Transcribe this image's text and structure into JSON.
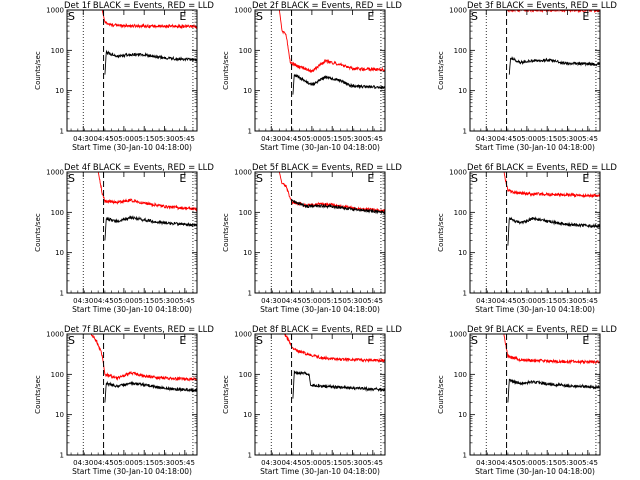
{
  "figure": {
    "x_tick_labels": [
      "04:30",
      "04:45",
      "05:00",
      "05:15",
      "05:30",
      "05:45"
    ],
    "y_tick_labels": [
      "1",
      "10",
      "100",
      "1000"
    ],
    "xlabel": "Start Time (30-Jan-10 04:18:00)",
    "ylabel": "Counts/sec",
    "start_marker": "S",
    "end_marker": "E"
  },
  "chart_data": [
    {
      "type": "line",
      "title": "Det 1f BLACK = Events, RED = LLD",
      "xlabel": "Start Time (30-Jan-10 04:18:00)",
      "ylabel": "Counts/sec",
      "xlim": [
        "04:18",
        "05:54"
      ],
      "ylim": [
        1,
        1000
      ],
      "y_scale": "log",
      "x_ticks": [
        "04:30",
        "04:45",
        "05:00",
        "05:15",
        "05:30",
        "05:45"
      ],
      "dotted_vlines": [
        "04:30",
        "05:51"
      ],
      "dashed_vline": "04:45",
      "markers": {
        "S": "04:18",
        "E": "05:41"
      },
      "series": [
        {
          "color": "#ff0000",
          "points": [
            [
              "04:44",
              1000
            ],
            [
              "04:46",
              500
            ],
            [
              "04:50",
              430
            ],
            [
              "05:00",
              410
            ],
            [
              "05:15",
              400
            ],
            [
              "05:30",
              395
            ],
            [
              "05:54",
              390
            ]
          ]
        },
        {
          "color": "#000000",
          "points": [
            [
              "04:46",
              25
            ],
            [
              "04:47",
              90
            ],
            [
              "04:55",
              70
            ],
            [
              "05:05",
              80
            ],
            [
              "05:15",
              78
            ],
            [
              "05:30",
              65
            ],
            [
              "05:54",
              58
            ]
          ]
        }
      ]
    },
    {
      "type": "line",
      "title": "Det 2f BLACK = Events, RED = LLD",
      "xlabel": "Start Time (30-Jan-10 04:18:00)",
      "ylabel": "Counts/sec",
      "xlim": [
        "04:18",
        "05:54"
      ],
      "ylim": [
        1,
        1000
      ],
      "y_scale": "log",
      "x_ticks": [
        "04:30",
        "04:45",
        "05:00",
        "05:15",
        "05:30",
        "05:45"
      ],
      "dotted_vlines": [
        "04:30",
        "05:51"
      ],
      "dashed_vline": "04:45",
      "markers": {
        "S": "04:18",
        "E": "05:41"
      },
      "series": [
        {
          "color": "#ff0000",
          "points": [
            [
              "04:36",
              1000
            ],
            [
              "04:38",
              300
            ],
            [
              "04:41",
              250
            ],
            [
              "04:44",
              50
            ],
            [
              "04:50",
              40
            ],
            [
              "05:00",
              30
            ],
            [
              "05:10",
              55
            ],
            [
              "05:20",
              45
            ],
            [
              "05:30",
              35
            ],
            [
              "05:54",
              33
            ]
          ]
        },
        {
          "color": "#000000",
          "points": [
            [
              "04:46",
              8
            ],
            [
              "04:47",
              25
            ],
            [
              "04:52",
              20
            ],
            [
              "05:00",
              14
            ],
            [
              "05:10",
              22
            ],
            [
              "05:20",
              18
            ],
            [
              "05:30",
              13
            ],
            [
              "05:54",
              12
            ]
          ]
        }
      ]
    },
    {
      "type": "line",
      "title": "Det 3f BLACK = Events, RED = LLD",
      "xlabel": "Start Time (30-Jan-10 04:18:00)",
      "ylabel": "Counts/sec",
      "xlim": [
        "04:18",
        "05:54"
      ],
      "ylim": [
        1,
        1000
      ],
      "y_scale": "log",
      "x_ticks": [
        "04:30",
        "04:45",
        "05:00",
        "05:15",
        "05:30",
        "05:45"
      ],
      "dotted_vlines": [
        "04:30",
        "05:51"
      ],
      "dashed_vline": "04:45",
      "markers": {
        "S": "04:18",
        "E": "05:41"
      },
      "series": [
        {
          "color": "#ff0000",
          "points": [
            [
              "04:45",
              1000
            ],
            [
              "05:54",
              980
            ]
          ]
        },
        {
          "color": "#000000",
          "points": [
            [
              "04:47",
              25
            ],
            [
              "04:48",
              65
            ],
            [
              "04:55",
              50
            ],
            [
              "05:05",
              55
            ],
            [
              "05:15",
              58
            ],
            [
              "05:30",
              48
            ],
            [
              "05:54",
              45
            ]
          ]
        }
      ]
    },
    {
      "type": "line",
      "title": "Det 4f BLACK = Events, RED = LLD",
      "xlabel": "Start Time (30-Jan-10 04:18:00)",
      "ylabel": "Counts/sec",
      "xlim": [
        "04:18",
        "05:54"
      ],
      "ylim": [
        1,
        1000
      ],
      "y_scale": "log",
      "x_ticks": [
        "04:30",
        "04:45",
        "05:00",
        "05:15",
        "05:30",
        "05:45"
      ],
      "dotted_vlines": [
        "04:30",
        "05:51"
      ],
      "dashed_vline": "04:45",
      "markers": {
        "S": "04:18",
        "E": "05:41"
      },
      "series": [
        {
          "color": "#ff0000",
          "points": [
            [
              "04:41",
              1000
            ],
            [
              "04:44",
              300
            ],
            [
              "04:46",
              190
            ],
            [
              "04:55",
              175
            ],
            [
              "05:05",
              200
            ],
            [
              "05:15",
              170
            ],
            [
              "05:30",
              140
            ],
            [
              "05:54",
              120
            ]
          ]
        },
        {
          "color": "#000000",
          "points": [
            [
              "04:46",
              20
            ],
            [
              "04:47",
              70
            ],
            [
              "04:55",
              60
            ],
            [
              "05:05",
              75
            ],
            [
              "05:15",
              65
            ],
            [
              "05:30",
              55
            ],
            [
              "05:54",
              48
            ]
          ]
        }
      ]
    },
    {
      "type": "line",
      "title": "Det 5f BLACK = Events, RED = LLD",
      "xlabel": "Start Time (30-Jan-10 04:18:00)",
      "ylabel": "Counts/sec",
      "xlim": [
        "04:18",
        "05:54"
      ],
      "ylim": [
        1,
        1000
      ],
      "y_scale": "log",
      "x_ticks": [
        "04:30",
        "04:45",
        "05:00",
        "05:15",
        "05:30",
        "05:45"
      ],
      "dotted_vlines": [
        "04:30",
        "05:51"
      ],
      "dashed_vline": "04:45",
      "markers": {
        "S": "04:18",
        "E": "05:41"
      },
      "series": [
        {
          "color": "#ff0000",
          "points": [
            [
              "04:36",
              1000
            ],
            [
              "04:38",
              500
            ],
            [
              "04:41",
              450
            ],
            [
              "04:45",
              180
            ],
            [
              "04:55",
              150
            ],
            [
              "05:05",
              160
            ],
            [
              "05:15",
              155
            ],
            [
              "05:30",
              125
            ],
            [
              "05:54",
              110
            ]
          ]
        },
        {
          "color": "#000000",
          "points": [
            [
              "04:45",
              200
            ],
            [
              "04:55",
              140
            ],
            [
              "05:05",
              145
            ],
            [
              "05:15",
              140
            ],
            [
              "05:30",
              120
            ],
            [
              "05:54",
              100
            ]
          ]
        }
      ]
    },
    {
      "type": "line",
      "title": "Det 6f BLACK = Events, RED = LLD",
      "xlabel": "Start Time (30-Jan-10 04:18:00)",
      "ylabel": "Counts/sec",
      "xlim": [
        "04:18",
        "05:54"
      ],
      "ylim": [
        1,
        1000
      ],
      "y_scale": "log",
      "x_ticks": [
        "04:30",
        "04:45",
        "05:00",
        "05:15",
        "05:30",
        "05:45"
      ],
      "dotted_vlines": [
        "04:30",
        "05:51"
      ],
      "dashed_vline": "04:45",
      "markers": {
        "S": "04:18",
        "E": "05:41"
      },
      "series": [
        {
          "color": "#ff0000",
          "points": [
            [
              "04:43",
              1000
            ],
            [
              "04:46",
              350
            ],
            [
              "04:50",
              310
            ],
            [
              "05:00",
              290
            ],
            [
              "05:15",
              280
            ],
            [
              "05:30",
              270
            ],
            [
              "05:54",
              260
            ]
          ]
        },
        {
          "color": "#000000",
          "points": [
            [
              "04:46",
              15
            ],
            [
              "04:47",
              70
            ],
            [
              "04:55",
              55
            ],
            [
              "05:05",
              70
            ],
            [
              "05:15",
              60
            ],
            [
              "05:30",
              50
            ],
            [
              "05:54",
              45
            ]
          ]
        }
      ]
    },
    {
      "type": "line",
      "title": "Det 7f BLACK = Events, RED = LLD",
      "xlabel": "Start Time (30-Jan-10 04:18:00)",
      "ylabel": "Counts/sec",
      "xlim": [
        "04:18",
        "05:54"
      ],
      "ylim": [
        1,
        1000
      ],
      "y_scale": "log",
      "x_ticks": [
        "04:30",
        "04:45",
        "05:00",
        "05:15",
        "05:30",
        "05:45"
      ],
      "dotted_vlines": [
        "04:30",
        "05:51"
      ],
      "dashed_vline": "04:45",
      "markers": {
        "S": "04:18",
        "E": "05:41"
      },
      "series": [
        {
          "color": "#ff0000",
          "points": [
            [
              "04:36",
              1000
            ],
            [
              "04:40",
              650
            ],
            [
              "04:44",
              300
            ],
            [
              "04:46",
              100
            ],
            [
              "04:55",
              80
            ],
            [
              "05:05",
              110
            ],
            [
              "05:15",
              90
            ],
            [
              "05:30",
              80
            ],
            [
              "05:54",
              75
            ]
          ]
        },
        {
          "color": "#000000",
          "points": [
            [
              "04:46",
              20
            ],
            [
              "04:47",
              60
            ],
            [
              "04:55",
              50
            ],
            [
              "05:05",
              60
            ],
            [
              "05:15",
              55
            ],
            [
              "05:30",
              45
            ],
            [
              "05:54",
              40
            ]
          ]
        }
      ]
    },
    {
      "type": "line",
      "title": "Det 8f BLACK = Events, RED = LLD",
      "xlabel": "Start Time (30-Jan-10 04:18:00)",
      "ylabel": "Counts/sec",
      "xlim": [
        "04:18",
        "05:54"
      ],
      "ylim": [
        1,
        1000
      ],
      "y_scale": "log",
      "x_ticks": [
        "04:30",
        "04:45",
        "05:00",
        "05:15",
        "05:30",
        "05:45"
      ],
      "dotted_vlines": [
        "04:30",
        "05:51"
      ],
      "dashed_vline": "04:45",
      "markers": {
        "S": "04:18",
        "E": "05:41"
      },
      "series": [
        {
          "color": "#ff0000",
          "points": [
            [
              "04:40",
              1000
            ],
            [
              "04:44",
              600
            ],
            [
              "04:46",
              420
            ],
            [
              "04:55",
              330
            ],
            [
              "05:05",
              270
            ],
            [
              "05:15",
              240
            ],
            [
              "05:30",
              230
            ],
            [
              "05:54",
              220
            ]
          ]
        },
        {
          "color": "#000000",
          "points": [
            [
              "04:46",
              25
            ],
            [
              "04:47",
              110
            ],
            [
              "04:55",
              105
            ],
            [
              "04:58",
              100
            ],
            [
              "04:59",
              55
            ],
            [
              "05:10",
              50
            ],
            [
              "05:20",
              48
            ],
            [
              "05:30",
              45
            ],
            [
              "05:54",
              42
            ]
          ]
        }
      ]
    },
    {
      "type": "line",
      "title": "Det 9f BLACK = Events, RED = LLD",
      "xlabel": "Start Time (30-Jan-10 04:18:00)",
      "ylabel": "Counts/sec",
      "xlim": [
        "04:18",
        "05:54"
      ],
      "ylim": [
        1,
        1000
      ],
      "y_scale": "log",
      "x_ticks": [
        "04:30",
        "04:45",
        "05:00",
        "05:15",
        "05:30",
        "05:45"
      ],
      "dotted_vlines": [
        "04:30",
        "05:51"
      ],
      "dashed_vline": "04:45",
      "markers": {
        "S": "04:18",
        "E": "05:41"
      },
      "series": [
        {
          "color": "#ff0000",
          "points": [
            [
              "04:43",
              1000
            ],
            [
              "04:46",
              280
            ],
            [
              "04:55",
              230
            ],
            [
              "05:05",
              220
            ],
            [
              "05:15",
              215
            ],
            [
              "05:30",
              205
            ],
            [
              "05:54",
              200
            ]
          ]
        },
        {
          "color": "#000000",
          "points": [
            [
              "04:46",
              20
            ],
            [
              "04:47",
              70
            ],
            [
              "04:55",
              60
            ],
            [
              "05:05",
              65
            ],
            [
              "05:15",
              58
            ],
            [
              "05:30",
              52
            ],
            [
              "05:54",
              48
            ]
          ]
        }
      ]
    }
  ]
}
